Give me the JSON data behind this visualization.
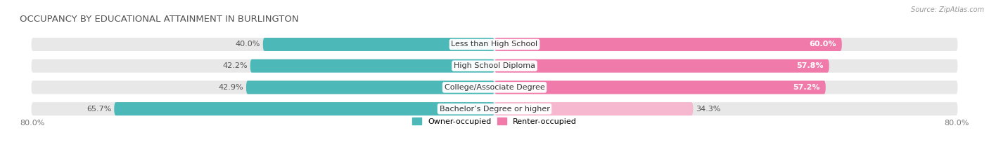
{
  "title": "OCCUPANCY BY EDUCATIONAL ATTAINMENT IN BURLINGTON",
  "source": "Source: ZipAtlas.com",
  "categories": [
    "Less than High School",
    "High School Diploma",
    "College/Associate Degree",
    "Bachelor’s Degree or higher"
  ],
  "owner_values": [
    40.0,
    42.2,
    42.9,
    65.7
  ],
  "renter_values": [
    60.0,
    57.8,
    57.2,
    34.3
  ],
  "owner_color": "#4db8b8",
  "renter_colors": [
    "#f07aaa",
    "#f07aaa",
    "#f07aaa",
    "#f5b8cf"
  ],
  "owner_label": "Owner-occupied",
  "renter_label": "Renter-occupied",
  "x_left_label": "80.0%",
  "x_right_label": "80.0%",
  "axis_extent": 80,
  "background_color": "#ffffff",
  "bar_bg_color": "#e8e8e8",
  "title_fontsize": 9.5,
  "source_fontsize": 7,
  "label_fontsize": 8,
  "value_fontsize": 8
}
